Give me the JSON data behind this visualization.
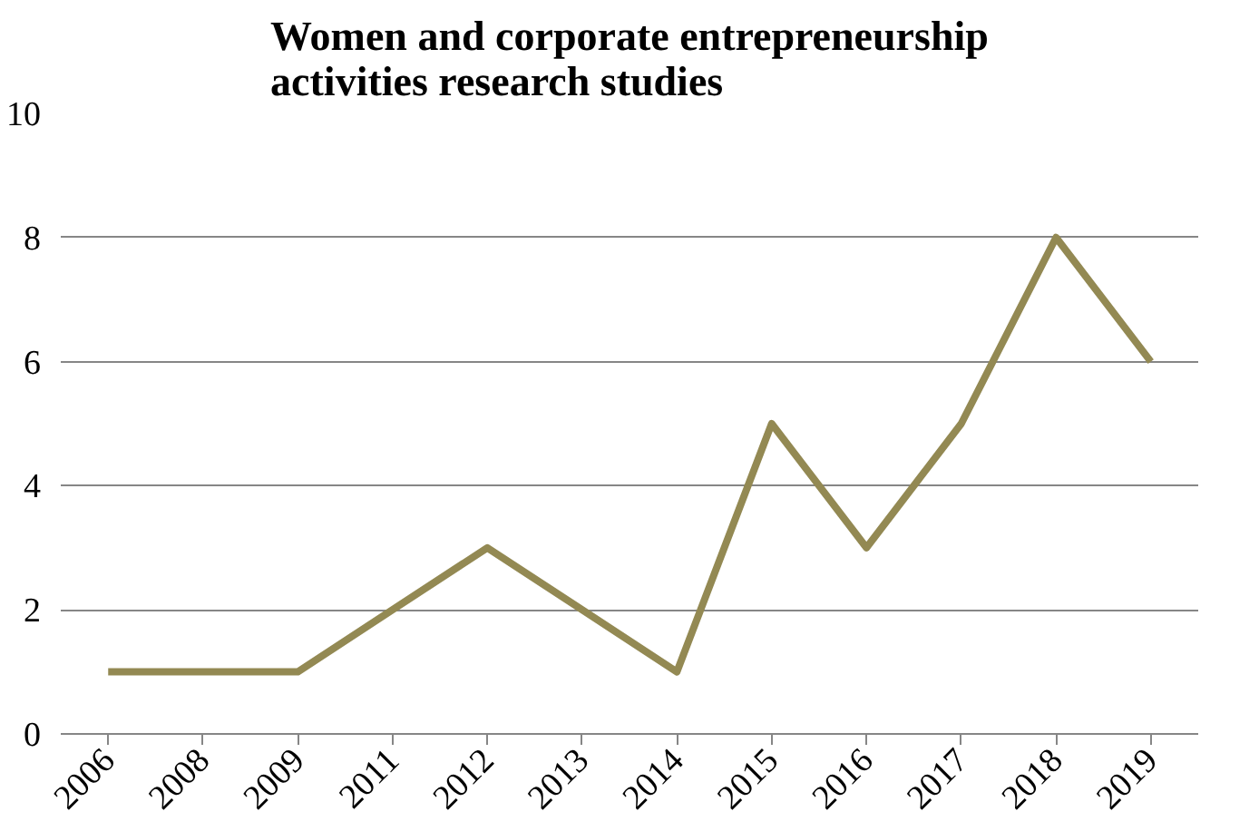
{
  "chart_data": {
    "type": "line",
    "title": "Women and corporate entrepreneurship activities research studies",
    "categories": [
      "2006",
      "2008",
      "2009",
      "2011",
      "2012",
      "2013",
      "2014",
      "2015",
      "2016",
      "2017",
      "2018",
      "2019"
    ],
    "series": [
      {
        "color": "#938953",
        "values": [
          1,
          1,
          1,
          2,
          3,
          2,
          1,
          5,
          3,
          5,
          8,
          6
        ]
      }
    ],
    "ylim": [
      0,
      10
    ],
    "yticks": [
      0,
      2,
      4,
      6,
      8,
      10
    ],
    "grid": "y",
    "marker": "none",
    "line_style": "solid"
  }
}
